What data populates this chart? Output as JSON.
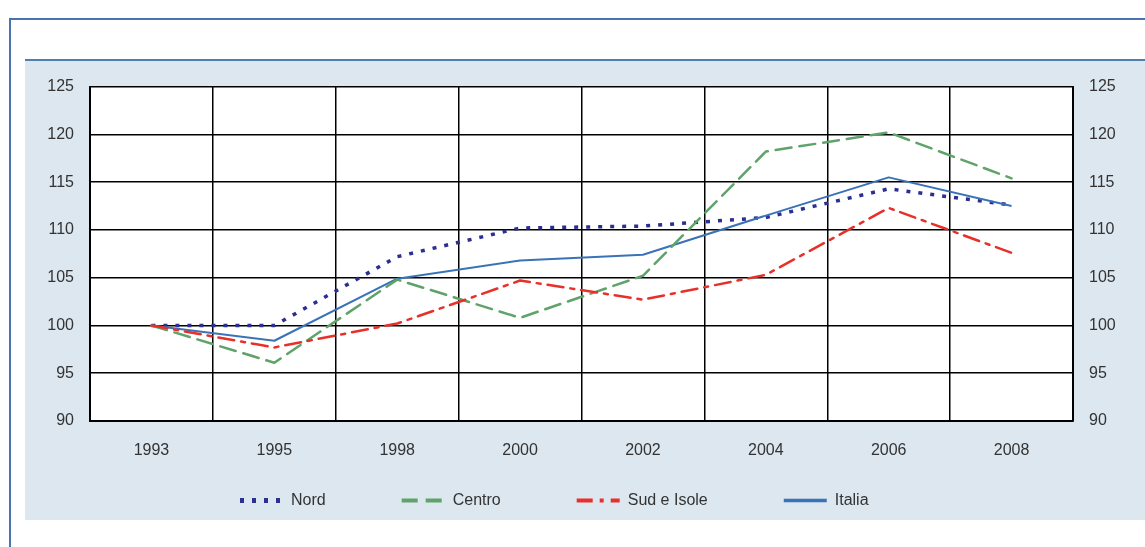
{
  "chart_data": {
    "type": "line",
    "categories": [
      "1993",
      "1995",
      "1998",
      "2000",
      "2002",
      "2004",
      "2006",
      "2008"
    ],
    "series": [
      {
        "name": "Nord",
        "color": "#2b2f8f",
        "line_style": "dotted",
        "values": [
          100,
          100,
          107.2,
          110.2,
          110.4,
          111.3,
          114.3,
          112.6
        ]
      },
      {
        "name": "Centro",
        "color": "#5fa36a",
        "line_style": "dashed",
        "values": [
          100,
          96.1,
          104.8,
          100.8,
          105.2,
          118.2,
          120.2,
          115.4
        ]
      },
      {
        "name": "Sud e Isole",
        "color": "#e8302a",
        "line_style": "dashdot",
        "values": [
          100,
          97.7,
          100.2,
          104.7,
          102.7,
          105.3,
          112.3,
          107.6
        ]
      },
      {
        "name": "Italia",
        "color": "#3a72b8",
        "line_style": "solid",
        "values": [
          100,
          98.4,
          104.9,
          106.8,
          107.4,
          111.5,
          115.5,
          112.5
        ]
      }
    ],
    "ylim": [
      90,
      125
    ],
    "yticks": [
      90,
      95,
      100,
      105,
      110,
      115,
      120,
      125
    ],
    "y2lim": [
      90,
      125
    ],
    "y2ticks": [
      90,
      95,
      100,
      105,
      110,
      115,
      120,
      125
    ],
    "grid": true,
    "legend": "bottom",
    "marker": "none"
  }
}
